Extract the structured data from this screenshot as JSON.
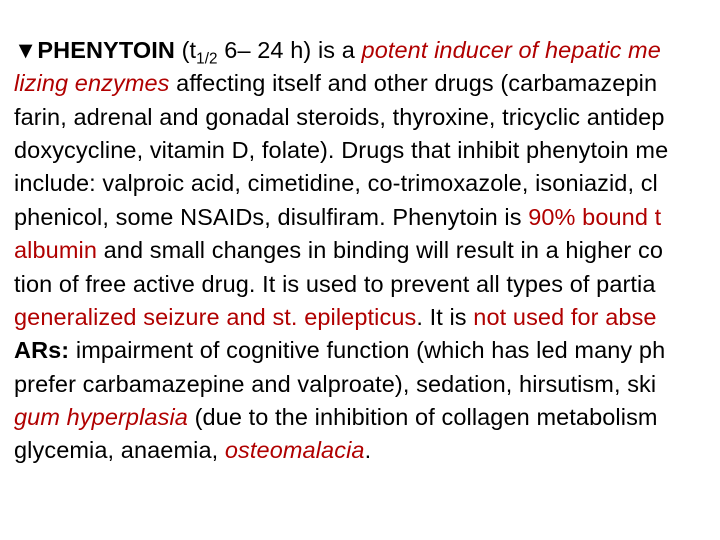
{
  "colors": {
    "text": "#000000",
    "highlight": "#b00000",
    "background": "#ffffff"
  },
  "typography": {
    "family": "Arial",
    "size_pt": 18,
    "line_height": 1.42
  },
  "text": {
    "marker": "▼",
    "drug": "PHENYTOIN",
    "tOpen": " (t",
    "tSub": "1/2",
    "tRange": " 6– 24 h) is a ",
    "inducer1": "potent inducer of hepatic me",
    "inducer2": "lizing enzymes",
    "seg1": " affecting itself and other drugs (carbamazepin",
    "seg2": "farin, adrenal and gonadal steroids, thyroxine, tricyclic antidep",
    "seg3": "doxycycline, vitamin D, folate). Drugs that inhibit phenytoin me",
    "seg4": "include: valproic acid, cimetidine, co-trimoxazole, isoniazid, cl",
    "seg5": "phenicol, some NSAIDs, disulfiram. Phenytoin is ",
    "bound": "90% bound t",
    "albumin": "albumin",
    "seg6": " and small changes in binding will result in a higher co",
    "seg7": "tion of free active drug. It is used to prevent all types of partia",
    "seizure": "generalized seizure and st. epilepticus",
    "seg8": ". It is ",
    "notused": "not used for abse",
    "ars": "ARs:",
    "seg9": " impairment of cognitive function (which has led many ph",
    "seg10": "prefer carbamazepine and valproate), sedation, hirsutism, ski",
    "gum": "gum hyperplasia",
    "seg11": " (due to the inhibition of collagen metabolism",
    "seg12": "glycemia, anaemia, ",
    "osteo": "osteomalacia",
    "dot": "."
  }
}
